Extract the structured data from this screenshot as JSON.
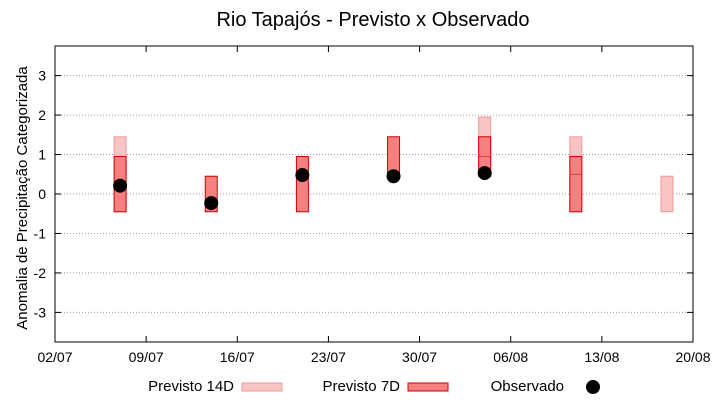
{
  "chart_data": {
    "type": "box",
    "title": "Rio Tapajós - Previsto x Observado",
    "xlabel": "",
    "ylabel": "Anomalia de Precipitação Categorizada",
    "xlim": [
      "2024-07-02",
      "2024-08-20"
    ],
    "ylim": [
      -3.75,
      3.75
    ],
    "y_ticks": [
      -3,
      -2,
      -1,
      0,
      1,
      2,
      3
    ],
    "x_tick_labels": [
      "02/07",
      "09/07",
      "16/07",
      "23/07",
      "30/07",
      "06/08",
      "13/08",
      "20/08"
    ],
    "grid": "horizontal dotted",
    "legend_position": "bottom",
    "series": [
      {
        "name": "Previsto 14D",
        "color": "#f8c4c4",
        "border_color": "#f09a9a",
        "ranges": [
          {
            "date": "2024-07-07",
            "low": -0.45,
            "high": 1.45
          },
          {
            "date": "2024-08-04",
            "low": 0.45,
            "high": 1.95
          },
          {
            "date": "2024-08-11",
            "low": -0.45,
            "high": 1.45
          },
          {
            "date": "2024-08-18",
            "low": -0.45,
            "high": 0.45
          }
        ]
      },
      {
        "name": "Previsto 7D",
        "color": "#f48080",
        "border_color": "#cc0000",
        "ranges": [
          {
            "date": "2024-07-07",
            "low": -0.45,
            "high": 0.95,
            "mid": 0.25
          },
          {
            "date": "2024-07-14",
            "low": -0.45,
            "high": 0.45,
            "mid": -0.2
          },
          {
            "date": "2024-07-21",
            "low": -0.45,
            "high": 0.95,
            "mid": 0.5
          },
          {
            "date": "2024-07-28",
            "low": 0.45,
            "high": 1.45
          },
          {
            "date": "2024-08-04",
            "low": 0.45,
            "high": 1.45,
            "mid": 0.95
          },
          {
            "date": "2024-08-11",
            "low": -0.45,
            "high": 0.95,
            "mid": 0.5
          }
        ]
      },
      {
        "name": "Observado",
        "color": "#000000",
        "points": [
          {
            "date": "2024-07-07",
            "value": 0.21
          },
          {
            "date": "2024-07-14",
            "value": -0.23
          },
          {
            "date": "2024-07-21",
            "value": 0.48
          },
          {
            "date": "2024-07-28",
            "value": 0.45
          },
          {
            "date": "2024-08-04",
            "value": 0.53
          }
        ]
      }
    ]
  }
}
